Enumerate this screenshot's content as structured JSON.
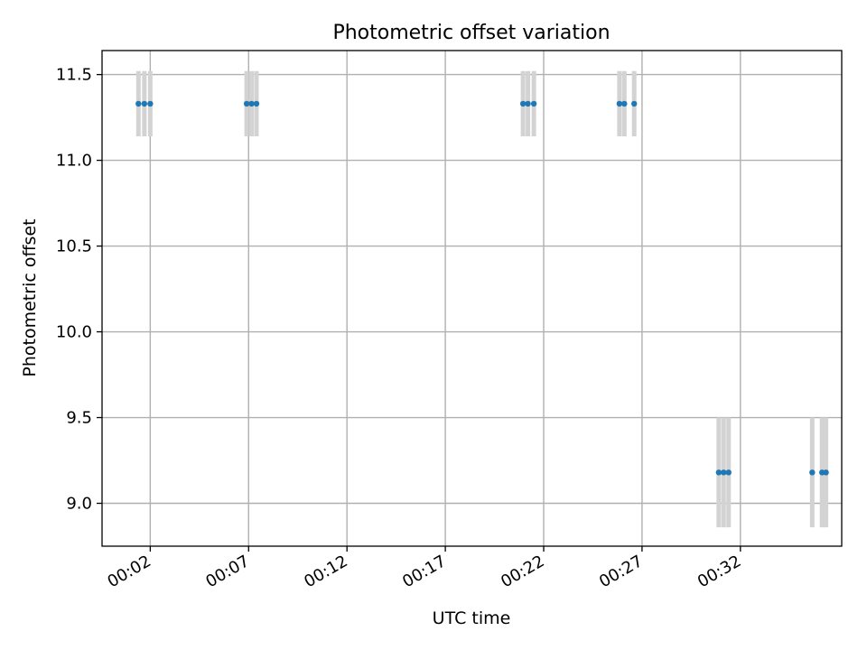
{
  "chart_data": {
    "type": "scatter",
    "title": "Photometric offset variation",
    "xlabel": "UTC time",
    "ylabel": "Photometric offset",
    "x_unit": "minutes after 00:00 UTC",
    "xlim": [
      -0.45,
      37.15
    ],
    "ylim": [
      8.75,
      11.64
    ],
    "x_ticks": [
      {
        "value": 2,
        "label": "00:02"
      },
      {
        "value": 7,
        "label": "00:07"
      },
      {
        "value": 12,
        "label": "00:12"
      },
      {
        "value": 17,
        "label": "00:17"
      },
      {
        "value": 22,
        "label": "00:22"
      },
      {
        "value": 27,
        "label": "00:27"
      },
      {
        "value": 32,
        "label": "00:32"
      }
    ],
    "y_ticks": [
      {
        "value": 9.0,
        "label": "9.0"
      },
      {
        "value": 9.5,
        "label": "9.5"
      },
      {
        "value": 10.0,
        "label": "10.0"
      },
      {
        "value": 10.5,
        "label": "10.5"
      },
      {
        "value": 11.0,
        "label": "11.0"
      },
      {
        "value": 11.5,
        "label": "11.5"
      }
    ],
    "grid": true,
    "colors": {
      "marker": "#1f77b4",
      "errorbar": "#d3d3d3",
      "grid": "#b0b0b0",
      "axes": "#000000"
    },
    "series": [
      {
        "points": [
          {
            "x": 1.4,
            "y": 11.33,
            "err": 0.19
          },
          {
            "x": 1.7,
            "y": 11.33,
            "err": 0.19
          },
          {
            "x": 2.0,
            "y": 11.33,
            "err": 0.19
          },
          {
            "x": 6.9,
            "y": 11.33,
            "err": 0.19
          },
          {
            "x": 7.15,
            "y": 11.33,
            "err": 0.19
          },
          {
            "x": 7.4,
            "y": 11.33,
            "err": 0.19
          },
          {
            "x": 20.95,
            "y": 11.33,
            "err": 0.19
          },
          {
            "x": 21.2,
            "y": 11.33,
            "err": 0.19
          },
          {
            "x": 21.5,
            "y": 11.33,
            "err": 0.19
          },
          {
            "x": 25.85,
            "y": 11.33,
            "err": 0.19
          },
          {
            "x": 26.1,
            "y": 11.33,
            "err": 0.19
          },
          {
            "x": 26.6,
            "y": 11.33,
            "err": 0.19
          },
          {
            "x": 30.9,
            "y": 9.18,
            "err": 0.32
          },
          {
            "x": 31.15,
            "y": 9.18,
            "err": 0.32
          },
          {
            "x": 31.4,
            "y": 9.18,
            "err": 0.32
          },
          {
            "x": 35.65,
            "y": 9.18,
            "err": 0.32
          },
          {
            "x": 36.15,
            "y": 9.18,
            "err": 0.32
          },
          {
            "x": 36.35,
            "y": 9.18,
            "err": 0.32
          }
        ]
      }
    ]
  }
}
